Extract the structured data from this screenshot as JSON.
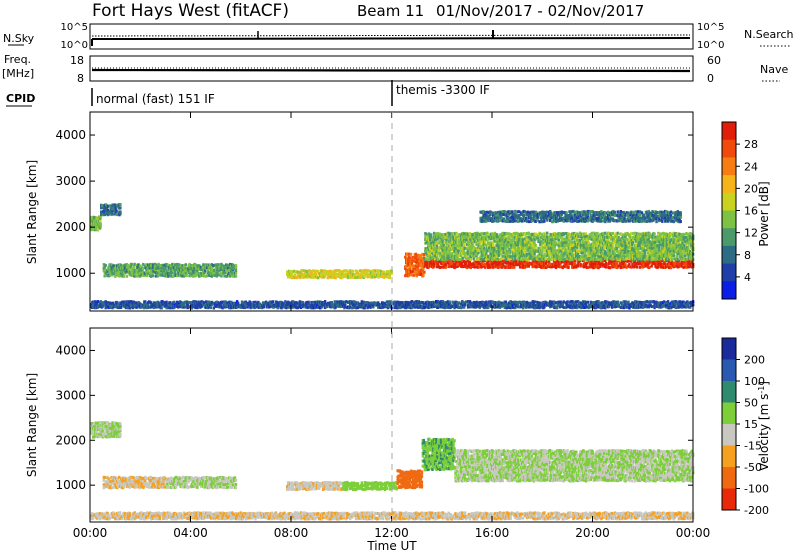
{
  "header": {
    "station": "Fort Hays West (fitACF)",
    "beam": "Beam 11",
    "dates": "01/Nov/2017 - 02/Nov/2017"
  },
  "aux": {
    "nsky_label": "N.Sky",
    "nsky_ticks": [
      "10^5",
      "10^0"
    ],
    "nsearch_label": "N.Search",
    "nsearch_ticks": [
      "10^5",
      "10^0"
    ],
    "freq_label_1": "Freq.",
    "freq_label_2": "[MHz]",
    "freq_ticks": [
      "18",
      "8"
    ],
    "nave_label": "Nave",
    "nave_ticks": [
      "60",
      "0"
    ],
    "cpid_label": "CPID",
    "cpid_segments": [
      {
        "label": "normal (fast) 151 IF",
        "start_hour": 0
      },
      {
        "label": "themis -3300 IF",
        "start_hour": 12
      }
    ]
  },
  "axes": {
    "xlabel": "Time UT",
    "x_ticks": [
      "00:00",
      "04:00",
      "08:00",
      "12:00",
      "16:00",
      "20:00",
      "00:00"
    ],
    "ylabel": "Slant Range [km]",
    "y_ticks": [
      "1000",
      "2000",
      "3000",
      "4000"
    ]
  },
  "power_scale": {
    "label": "Power [dB]",
    "ticks": [
      "4",
      "8",
      "12",
      "16",
      "20",
      "24",
      "28"
    ],
    "colors": [
      "#0a1ee6",
      "#1f3ea8",
      "#2e6b84",
      "#4a9a6a",
      "#7ec244",
      "#c9d21e",
      "#f5b41a",
      "#f57d12",
      "#f04a0c",
      "#e01e0a"
    ]
  },
  "velocity_scale": {
    "label": "Velocity [m s^-1]",
    "ticks": [
      "200",
      "100",
      "50",
      "15",
      "-15",
      "-50",
      "-100",
      "-200"
    ],
    "colors": [
      "#1a2a9a",
      "#2a5ab0",
      "#2f8a6e",
      "#7dcf3a",
      "#c8c8c0",
      "#f5a020",
      "#f06a12",
      "#e82a0a"
    ]
  },
  "chart_data": [
    {
      "type": "heatmap",
      "title": "Power",
      "xlabel": "Time UT",
      "ylabel": "Slant Range [km]",
      "xlim_hours": [
        0,
        24
      ],
      "ylim_km": [
        180,
        4500
      ],
      "colorbar": "Power [dB]",
      "colorbar_range": [
        0,
        32
      ],
      "echo_bands": [
        {
          "start_h": 0.0,
          "end_h": 0.4,
          "center_km": 2100,
          "width_km": 300,
          "value": 14
        },
        {
          "start_h": 0.4,
          "end_h": 1.2,
          "center_km": 2400,
          "width_km": 250,
          "value": 8
        },
        {
          "start_h": 0.5,
          "end_h": 5.8,
          "center_km": 1080,
          "width_km": 280,
          "value": 12
        },
        {
          "start_h": 7.8,
          "end_h": 12.0,
          "center_km": 1000,
          "width_km": 180,
          "value": 18
        },
        {
          "start_h": 12.5,
          "end_h": 13.3,
          "center_km": 1200,
          "width_km": 500,
          "value": 26
        },
        {
          "start_h": 13.3,
          "end_h": 24.0,
          "center_km": 1220,
          "width_km": 180,
          "value": 30
        },
        {
          "start_h": 13.3,
          "end_h": 24.0,
          "center_km": 1600,
          "width_km": 600,
          "value": 14
        },
        {
          "start_h": 15.5,
          "end_h": 23.5,
          "center_km": 2250,
          "width_km": 250,
          "value": 8
        },
        {
          "start_h": 0.0,
          "end_h": 24.0,
          "center_km": 330,
          "width_km": 150,
          "value": 6
        }
      ]
    },
    {
      "type": "heatmap",
      "title": "Velocity",
      "xlabel": "Time UT",
      "ylabel": "Slant Range [km]",
      "xlim_hours": [
        0,
        24
      ],
      "ylim_km": [
        180,
        4500
      ],
      "colorbar": "Velocity [m s^-1]",
      "colorbar_range": [
        -200,
        200
      ],
      "echo_bands": [
        {
          "start_h": 0.0,
          "end_h": 1.2,
          "center_km": 2250,
          "width_km": 350,
          "value": 0
        },
        {
          "start_h": 0.5,
          "end_h": 3.0,
          "center_km": 1080,
          "width_km": 260,
          "value": -50
        },
        {
          "start_h": 3.0,
          "end_h": 5.8,
          "center_km": 1080,
          "width_km": 260,
          "value": 0
        },
        {
          "start_h": 7.8,
          "end_h": 10.0,
          "center_km": 1000,
          "width_km": 180,
          "value": -40
        },
        {
          "start_h": 10.0,
          "end_h": 12.2,
          "center_km": 1000,
          "width_km": 180,
          "value": 30
        },
        {
          "start_h": 12.2,
          "end_h": 13.2,
          "center_km": 1150,
          "width_km": 400,
          "value": -120
        },
        {
          "start_h": 13.2,
          "end_h": 14.5,
          "center_km": 1700,
          "width_km": 700,
          "value": 40
        },
        {
          "start_h": 14.5,
          "end_h": 24.0,
          "center_km": 1450,
          "width_km": 700,
          "value": 0
        },
        {
          "start_h": 0.0,
          "end_h": 24.0,
          "center_km": 330,
          "width_km": 150,
          "value": -45
        }
      ]
    }
  ]
}
